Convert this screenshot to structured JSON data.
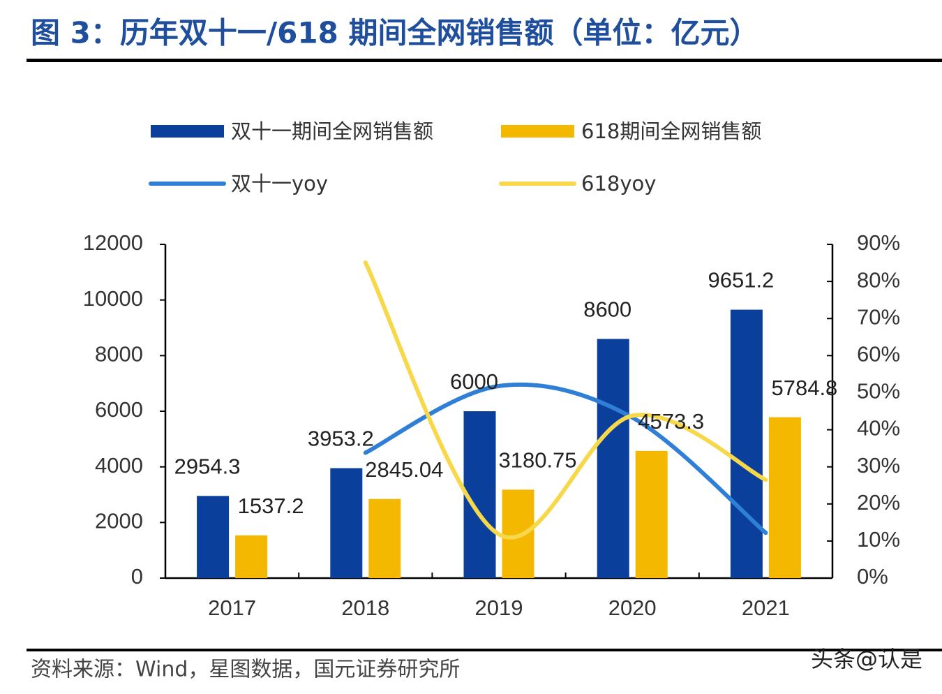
{
  "chart_data": {
    "type": "bar",
    "title": "图 3：历年双十一/618 期间全网销售额（单位：亿元）",
    "categories": [
      "2017",
      "2018",
      "2019",
      "2020",
      "2021"
    ],
    "series": [
      {
        "name": "双十一期间全网销售额",
        "color": "#0b3f9c",
        "values": [
          2954.3,
          3953.2,
          6000,
          8600,
          9651.2
        ]
      },
      {
        "name": "618期间全网销售额",
        "color": "#f5b800",
        "values": [
          1537.2,
          2845.04,
          3180.75,
          4573.3,
          5784.8
        ]
      },
      {
        "name": "双十一yoy",
        "type": "line",
        "axis": "y2",
        "color": "#2f7fd6",
        "values": [
          null,
          33.8,
          51.8,
          43.3,
          12.2
        ]
      },
      {
        "name": "618yoy",
        "type": "line",
        "axis": "y2",
        "color": "#f7d84a",
        "values": [
          null,
          85.1,
          11.8,
          43.8,
          26.5
        ]
      }
    ],
    "ylim": [
      0,
      12000
    ],
    "yticks": [
      0,
      2000,
      4000,
      6000,
      8000,
      10000,
      12000
    ],
    "y2lim": [
      0,
      90
    ],
    "y2ticks": [
      {
        "value": 0,
        "label": "0%"
      },
      {
        "value": 10,
        "label": "10%"
      },
      {
        "value": 20,
        "label": "20%"
      },
      {
        "value": 30,
        "label": "30%"
      },
      {
        "value": 40,
        "label": "40%"
      },
      {
        "value": 50,
        "label": "50%"
      },
      {
        "value": 60,
        "label": "60%"
      },
      {
        "value": 70,
        "label": "70%"
      },
      {
        "value": 80,
        "label": "80%"
      },
      {
        "value": 90,
        "label": "90%"
      }
    ],
    "source": "资料来源：Wind，星图数据，国元证券研究所",
    "watermark": "头条@认是"
  }
}
